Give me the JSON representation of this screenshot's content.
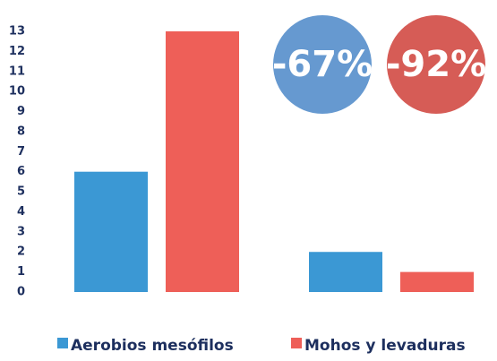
{
  "chart_data": {
    "type": "bar",
    "categories": [
      null,
      null
    ],
    "series": [
      {
        "name": "Aerobios mesófilos",
        "color": "#3b98d4",
        "values": [
          6,
          2
        ]
      },
      {
        "name": "Mohos y levaduras",
        "color": "#ee5f58",
        "values": [
          13,
          1
        ]
      }
    ],
    "ylim": [
      0,
      13
    ],
    "yticks": [
      0,
      1,
      2,
      3,
      4,
      5,
      6,
      7,
      8,
      9,
      10,
      11,
      12,
      13
    ],
    "annotations": [
      {
        "text": "-67%",
        "color": "#6699d0"
      },
      {
        "text": "-92%",
        "color": "#d65c56"
      }
    ],
    "legend": "bottom"
  }
}
